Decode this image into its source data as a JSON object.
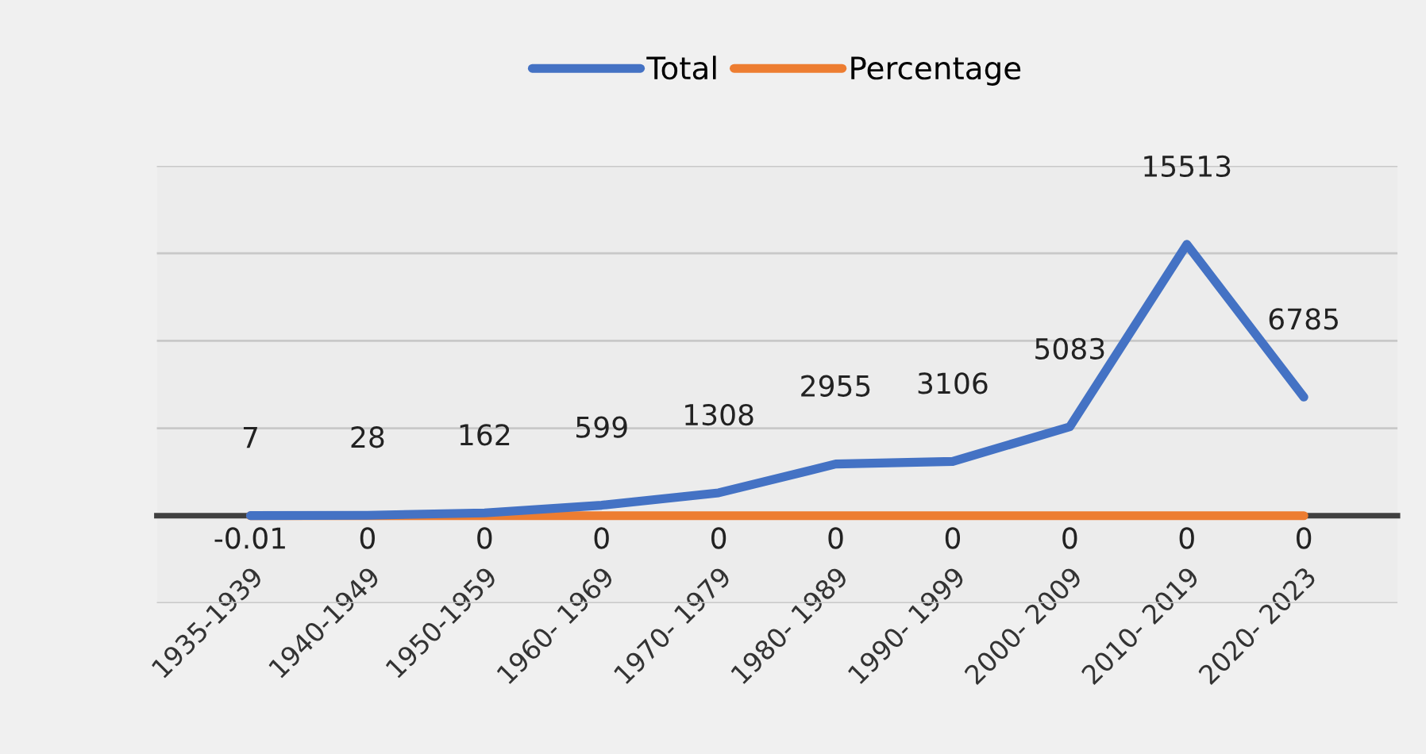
{
  "chart_data": {
    "type": "line",
    "categories": [
      "1935-1939",
      "1940-1949",
      "1950-1959",
      "1960- 1969",
      "1970- 1979",
      "1980- 1989",
      "1990- 1999",
      "2000- 2009",
      "2010- 2019",
      "2020- 2023"
    ],
    "series": [
      {
        "name": "Total",
        "color": "#4472c4",
        "values": [
          7,
          28,
          162,
          599,
          1308,
          2955,
          3106,
          5083,
          15513,
          6785
        ]
      },
      {
        "name": "Percentage",
        "color": "#ed7d31",
        "values": [
          -0.01,
          0,
          0,
          0,
          0,
          0,
          0,
          0,
          0,
          0
        ]
      }
    ],
    "ylim": [
      -5000,
      20000
    ],
    "yticks": [
      {
        "value": -5000,
        "label": null
      },
      {
        "value": 0,
        "label": null
      },
      {
        "value": 5000,
        "label": null
      },
      {
        "value": 10000,
        "label": null
      },
      {
        "value": 15000,
        "label": null
      },
      {
        "value": 20000,
        "label": null
      }
    ],
    "tick_labels": "x",
    "grid": "y",
    "legend": "top",
    "data_labels": true,
    "marker": "none",
    "line_style": "solid"
  }
}
